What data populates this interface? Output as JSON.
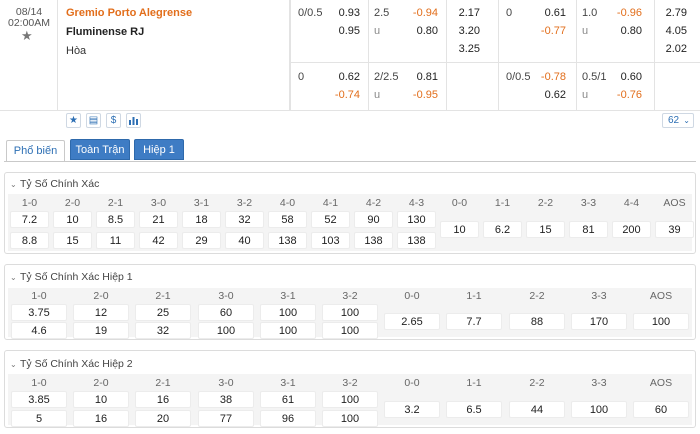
{
  "match": {
    "date": "08/14",
    "time": "02:00AM",
    "home": "Gremio Porto Alegrense",
    "away": "Fluminense RJ",
    "draw": "Hòa"
  },
  "odds_full": {
    "hdp_line": "0/0.5",
    "hdp_home": "0.93",
    "hdp_away": "0.95",
    "ou_line": "2.5",
    "ou_over": "-0.94",
    "ou_u": "u",
    "ou_under": "0.80",
    "x12_home": "2.17",
    "x12_away": "3.20",
    "x12_draw": "3.25"
  },
  "odds_half": {
    "hdp_line": "0",
    "hdp_home": "0.61",
    "hdp_away": "-0.77",
    "ou_line": "1.0",
    "ou_over": "-0.96",
    "ou_u": "u",
    "ou_under": "0.80",
    "x12_home": "2.79",
    "x12_away": "4.05",
    "x12_draw": "2.02"
  },
  "odds_full_2": {
    "hdp_line": "0",
    "hdp_home": "0.62",
    "hdp_away": "-0.74",
    "ou_line": "2/2.5",
    "ou_over": "0.81",
    "ou_u": "u",
    "ou_under": "-0.95"
  },
  "odds_half_2": {
    "hdp_line": "0/0.5",
    "hdp_home": "-0.78",
    "hdp_away": "0.62",
    "ou_line": "0.5/1",
    "ou_over": "0.60",
    "ou_u": "u",
    "ou_under": "-0.76"
  },
  "toolbar": {
    "star": "★",
    "tv": "▤",
    "dollar": "$",
    "chart": "📊",
    "count": "62",
    "count_chevron": "⌄"
  },
  "tabs": {
    "popular": "Phổ biến",
    "full": "Toàn Trận",
    "half": "Hiệp 1"
  },
  "sec1": {
    "title": "Tỷ Số Chính Xác",
    "headers": [
      "1-0",
      "2-0",
      "2-1",
      "3-0",
      "3-1",
      "3-2",
      "4-0",
      "4-1",
      "4-2",
      "4-3",
      "0-0",
      "1-1",
      "2-2",
      "3-3",
      "4-4",
      "AOS"
    ],
    "row1": [
      "7.2",
      "10",
      "8.5",
      "21",
      "18",
      "32",
      "58",
      "52",
      "90",
      "130"
    ],
    "row2": [
      "8.8",
      "15",
      "11",
      "42",
      "29",
      "40",
      "138",
      "103",
      "138",
      "138"
    ],
    "mid": [
      "10",
      "6.2",
      "15",
      "81",
      "200",
      "39"
    ]
  },
  "sec2": {
    "title": "Tỷ Số Chính Xác Hiệp 1",
    "headers": [
      "1-0",
      "2-0",
      "2-1",
      "3-0",
      "3-1",
      "3-2",
      "0-0",
      "1-1",
      "2-2",
      "3-3",
      "AOS"
    ],
    "row1": [
      "3.75",
      "12",
      "25",
      "60",
      "100",
      "100"
    ],
    "row2": [
      "4.6",
      "19",
      "32",
      "100",
      "100",
      "100"
    ],
    "mid": [
      "2.65",
      "7.7",
      "88",
      "170",
      "100"
    ]
  },
  "sec3": {
    "title": "Tỷ Số Chính Xác Hiệp 2",
    "headers": [
      "1-0",
      "2-0",
      "2-1",
      "3-0",
      "3-1",
      "3-2",
      "0-0",
      "1-1",
      "2-2",
      "3-3",
      "AOS"
    ],
    "row1": [
      "3.85",
      "10",
      "16",
      "38",
      "61",
      "100"
    ],
    "row2": [
      "5",
      "16",
      "20",
      "77",
      "96",
      "100"
    ],
    "mid": [
      "3.2",
      "6.5",
      "44",
      "100",
      "60"
    ]
  },
  "colors": {
    "accent": "#2d6fb4",
    "orange": "#e26e1b",
    "tab_button": "#3e7cc4"
  }
}
